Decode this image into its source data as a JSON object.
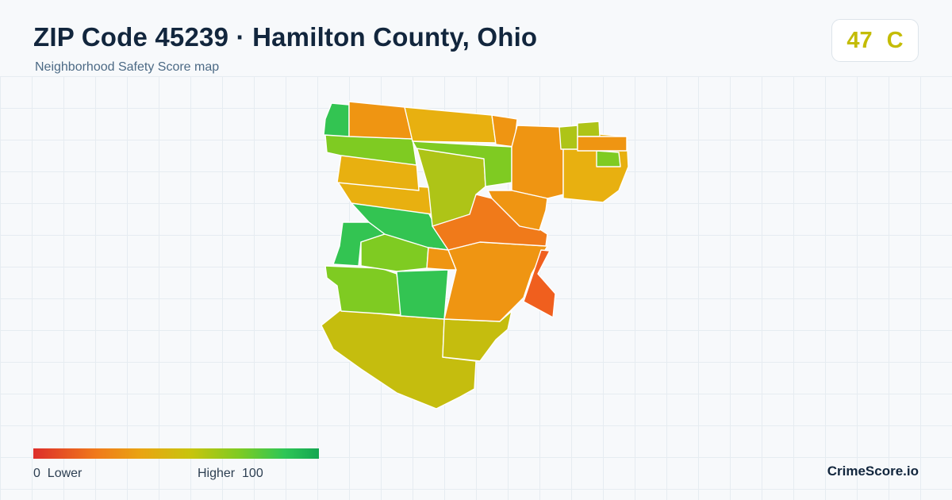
{
  "header": {
    "title": "ZIP Code 45239 · Hamilton County, Ohio",
    "subtitle": "Neighborhood Safety Score map"
  },
  "score": {
    "value": "47",
    "grade": "C",
    "color": "#c4bc05"
  },
  "legend": {
    "min": "0",
    "min_label": "Lower",
    "max_label": "Higher",
    "max": "100",
    "colors": [
      "#dd2e2b",
      "#f07a1a",
      "#e9a512",
      "#c8c40e",
      "#7fcb22",
      "#2ec656",
      "#14a651"
    ]
  },
  "brand": "CrimeScore.io",
  "map": {
    "icons": [
      "zip-boundary",
      "neighborhood-areas"
    ],
    "area_colors": {
      "red_orange": "#f05f1e",
      "orange": "#ef9512",
      "amber": "#e8b010",
      "yellow": "#c5bd0e",
      "lime": "#7fcb22",
      "green": "#33c452"
    }
  }
}
